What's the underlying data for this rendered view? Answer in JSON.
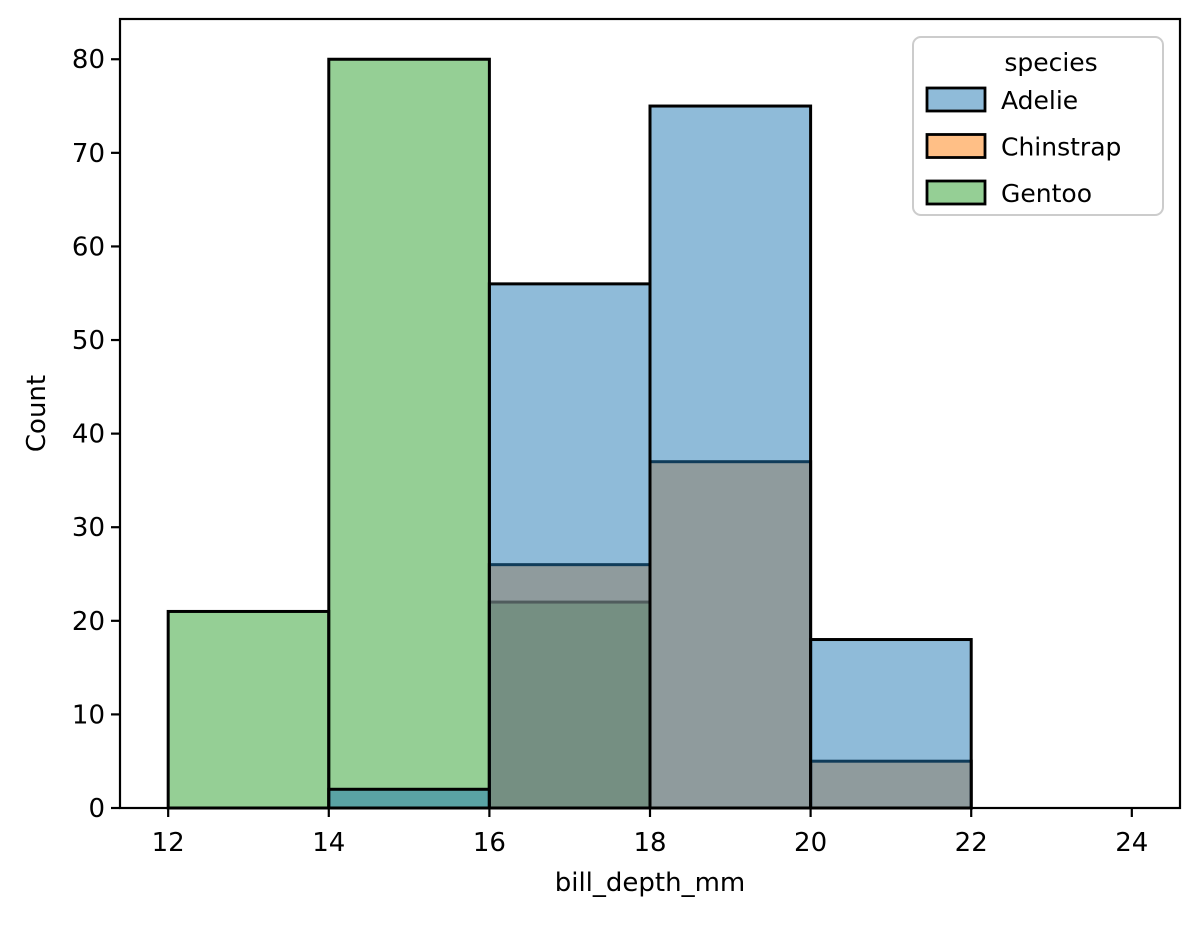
{
  "chart_data": {
    "type": "histogram",
    "title": "",
    "xlabel": "bill_depth_mm",
    "ylabel": "Count",
    "bin_edges": [
      12,
      14,
      16,
      18,
      20,
      22,
      24
    ],
    "bin_width": 2,
    "x_ticks": [
      12,
      14,
      16,
      18,
      20,
      22,
      24
    ],
    "y_ticks": [
      0,
      10,
      20,
      30,
      40,
      50,
      60,
      70,
      80
    ],
    "xlim": [
      11.4,
      24.6
    ],
    "ylim": [
      0,
      84.3
    ],
    "grid": false,
    "background_color": "#ffffff",
    "bar_edge_color": "#000000",
    "bar_fill_alpha": 0.5,
    "series": [
      {
        "name": "Adelie",
        "color": "#1f77b4",
        "values": [
          0,
          2,
          56,
          75,
          18,
          0
        ]
      },
      {
        "name": "Chinstrap",
        "color": "#ff7f0e",
        "values": [
          0,
          0,
          26,
          37,
          5,
          0
        ]
      },
      {
        "name": "Gentoo",
        "color": "#2ca02c",
        "values": [
          21,
          80,
          22,
          0,
          0,
          0
        ]
      }
    ],
    "draw_order": [
      "Gentoo",
      "Chinstrap",
      "Adelie"
    ],
    "legend": {
      "title": "species",
      "position": "upper right",
      "entries": [
        {
          "label": "Adelie",
          "color": "#1f77b4"
        },
        {
          "label": "Chinstrap",
          "color": "#ff7f0e"
        },
        {
          "label": "Gentoo",
          "color": "#2ca02c"
        }
      ]
    }
  }
}
